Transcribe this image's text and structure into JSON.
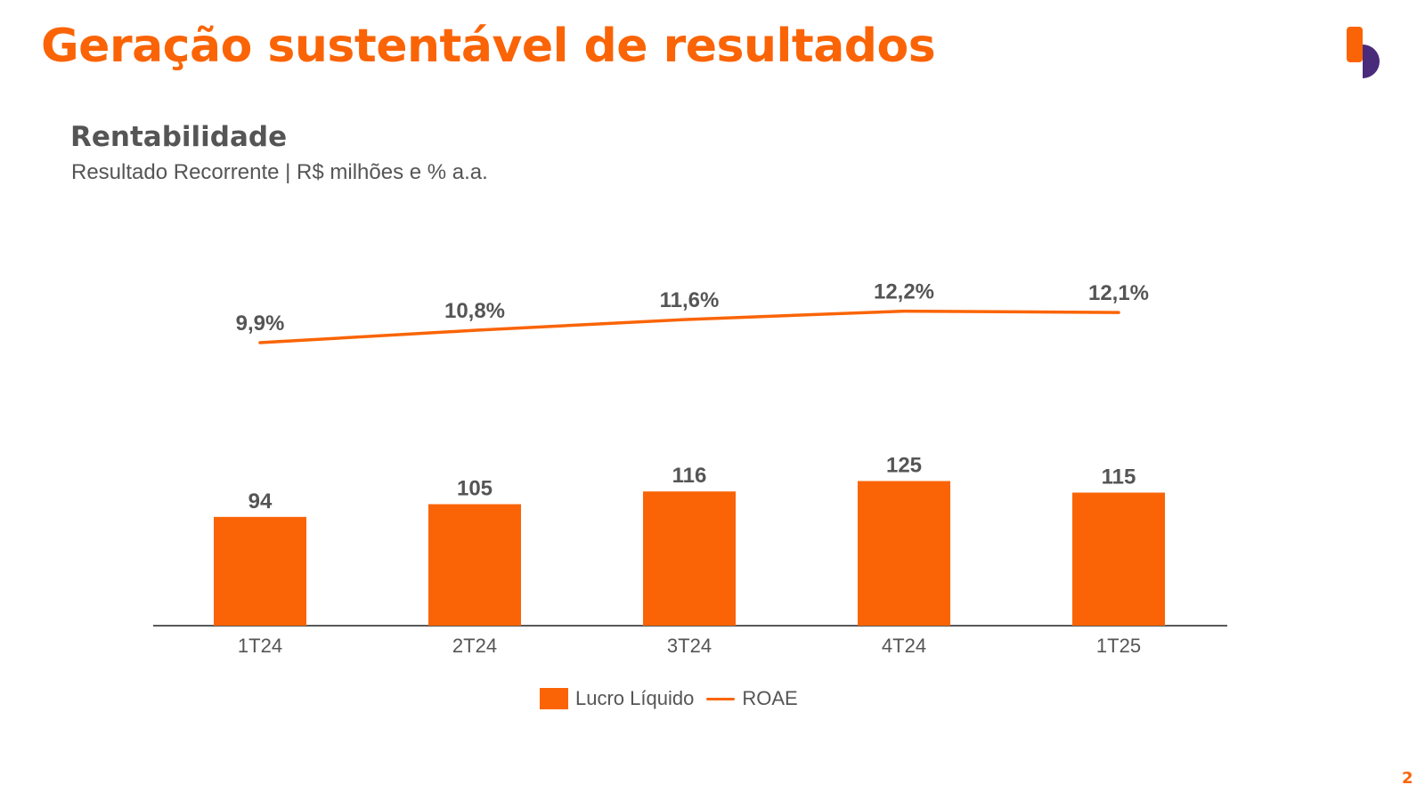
{
  "slide": {
    "title": "Geração sustentável de resultados",
    "page_number": "2"
  },
  "section": {
    "title": "Rentabilidade",
    "subtitle": "Resultado Recorrente | R$ milhões e % a.a."
  },
  "colors": {
    "accent": "#fa6406",
    "text": "#555555",
    "logo_purple": "#4a2a7a"
  },
  "icons": {
    "logo": "brand-logo-icon"
  },
  "chart_data": {
    "type": "bar",
    "categories": [
      "1T24",
      "2T24",
      "3T24",
      "4T24",
      "1T25"
    ],
    "series": [
      {
        "name": "Lucro Líquido",
        "type": "bar",
        "values": [
          94,
          105,
          116,
          125,
          115
        ],
        "labels": [
          "94",
          "105",
          "116",
          "125",
          "115"
        ]
      },
      {
        "name": "ROAE",
        "type": "line",
        "values": [
          9.9,
          10.8,
          11.6,
          12.2,
          12.1
        ],
        "labels": [
          "9,9%",
          "10,8%",
          "11,6%",
          "12,2%",
          "12,1%"
        ]
      }
    ],
    "title": "",
    "xlabel": "",
    "ylabel": "",
    "ylim": [
      0,
      125
    ],
    "grid": false,
    "legend_position": "bottom-center"
  }
}
